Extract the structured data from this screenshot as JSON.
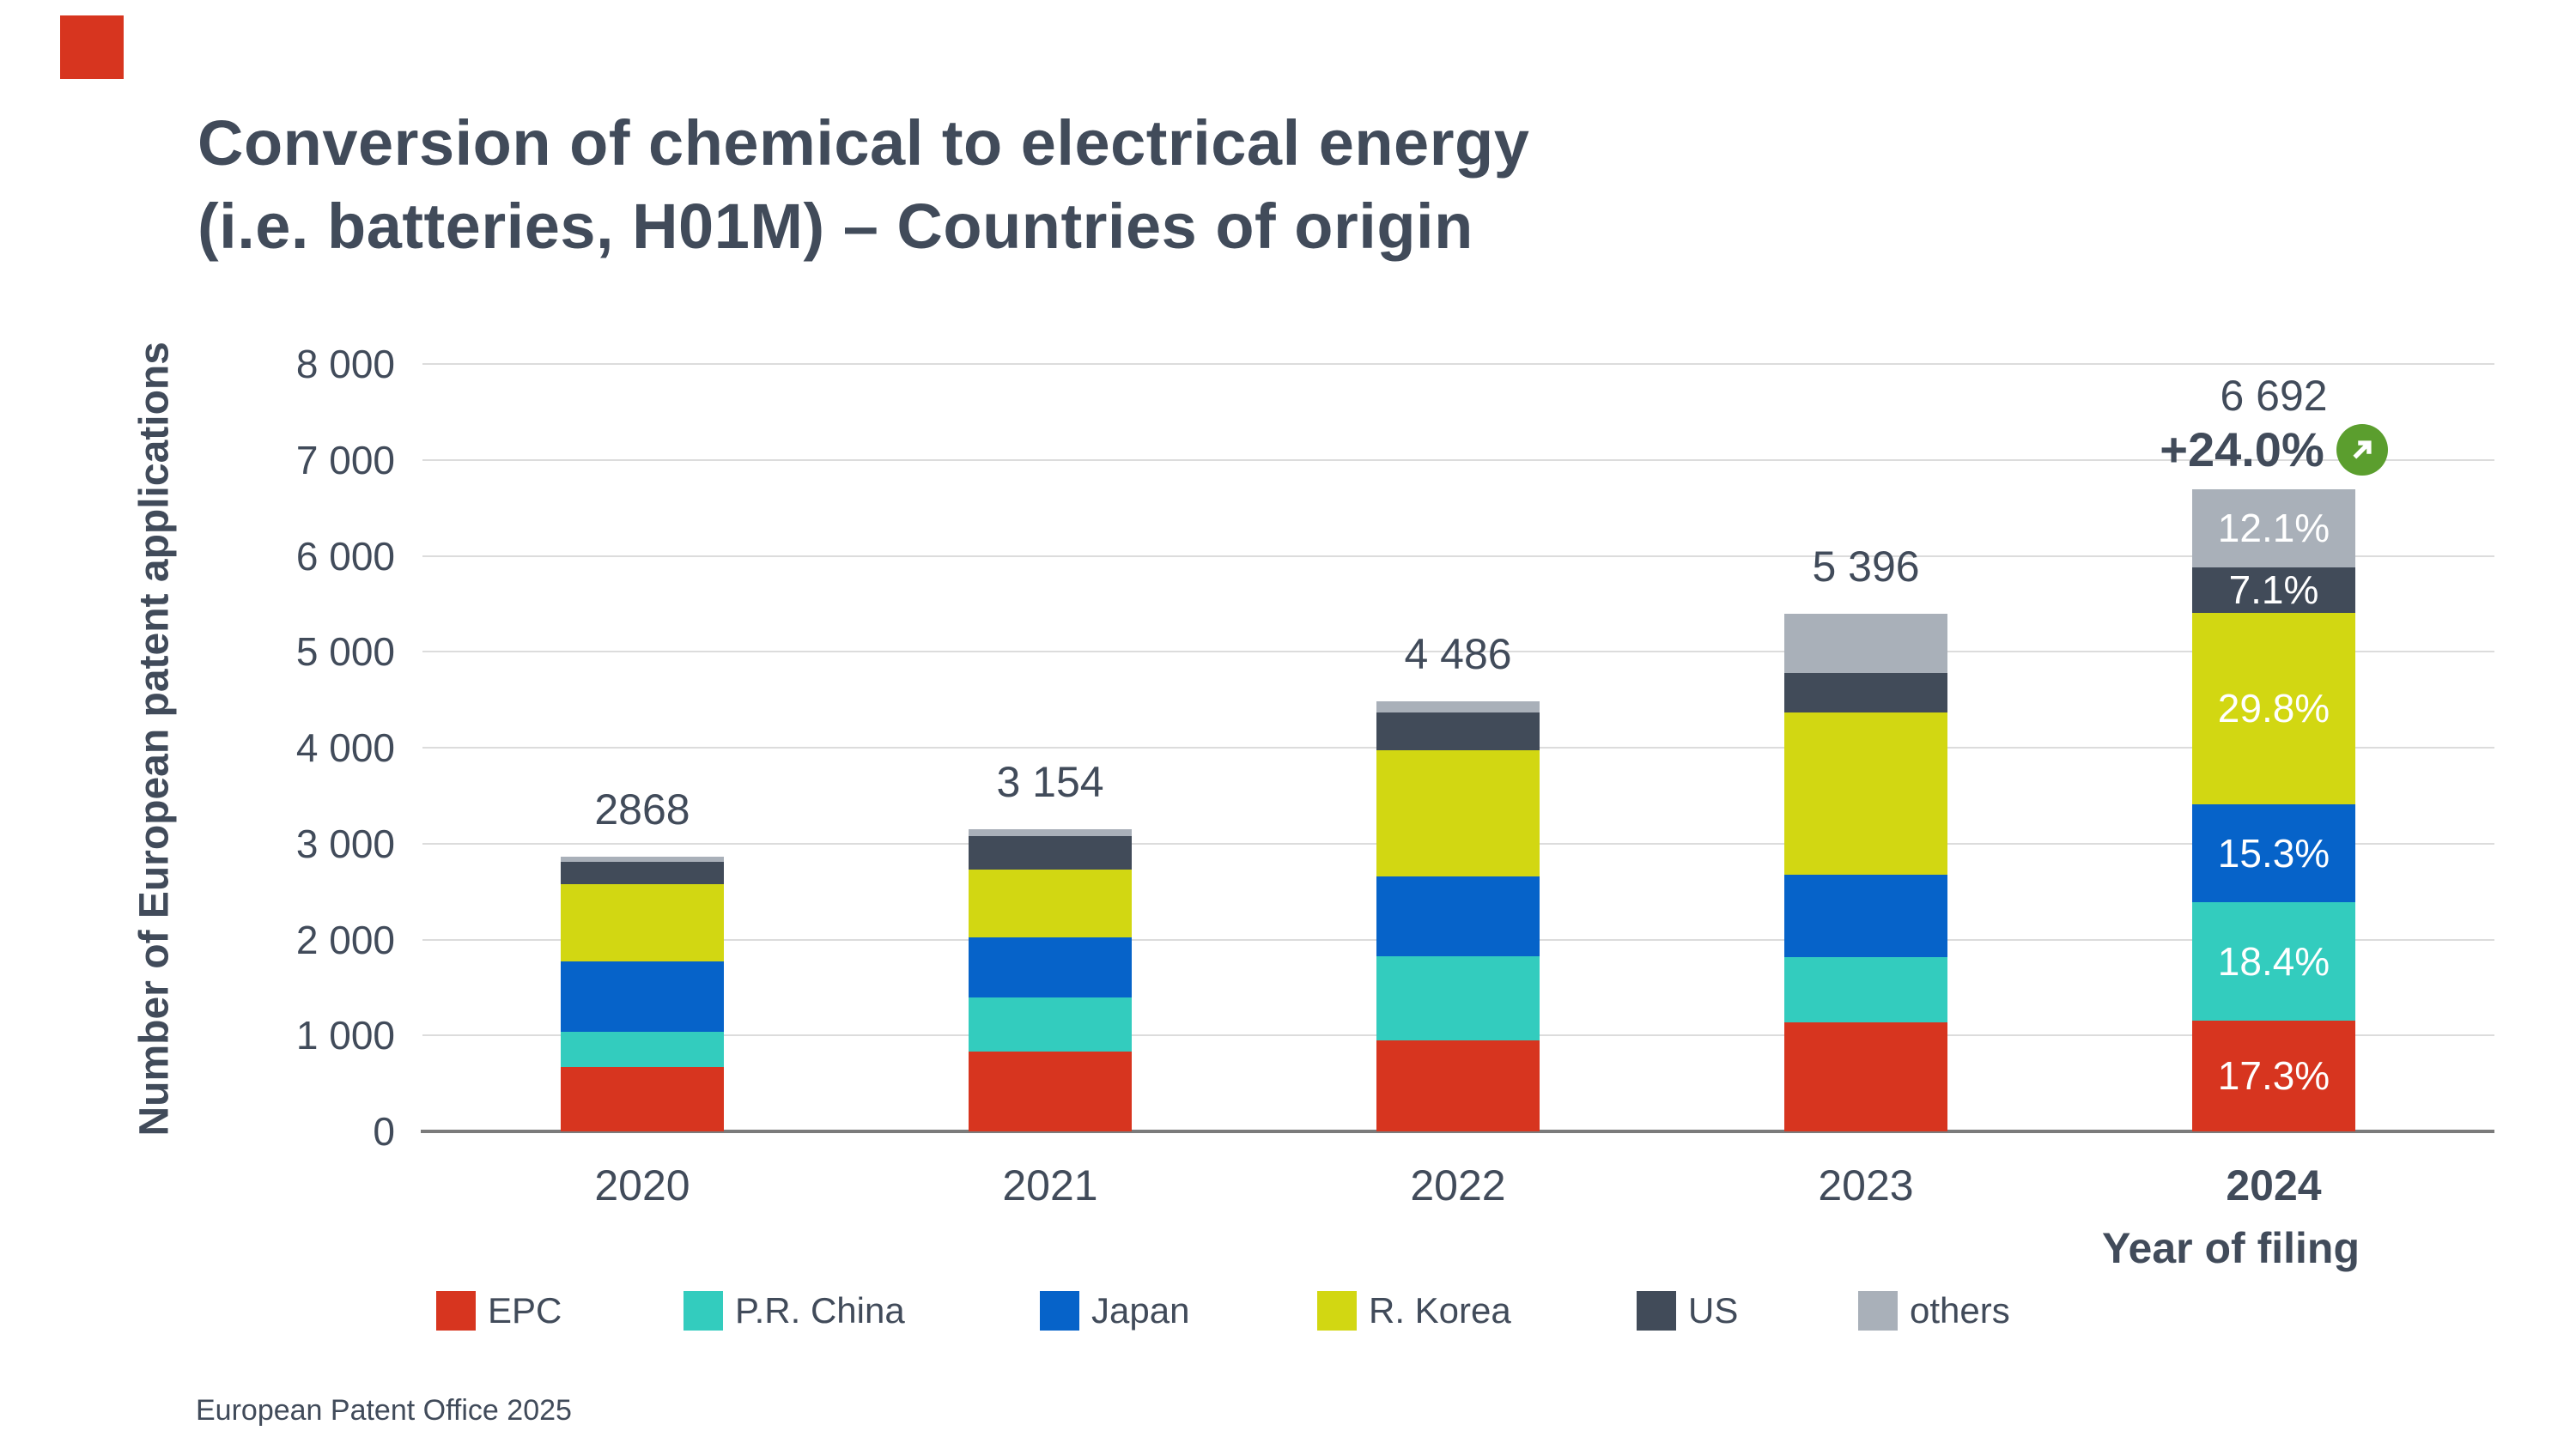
{
  "page": {
    "title_line1": "Conversion of chemical to electrical energy",
    "title_line2": "(i.e. batteries, H01M) – Countries of origin",
    "footer": "European Patent Office 2025"
  },
  "chart_data": {
    "type": "bar",
    "stacked": true,
    "title": "Conversion of chemical to electrical energy (i.e. batteries, H01M) – Countries of origin",
    "ylabel": "Number of European patent applications",
    "xlabel": "Year of filing",
    "ylim": [
      0,
      8000
    ],
    "grid": true,
    "legend_position": "bottom",
    "ytick_labels": [
      "0",
      "1 000",
      "2 000",
      "3 000",
      "4 000",
      "5 000",
      "6 000",
      "7 000",
      "8 000"
    ],
    "categories": [
      "2020",
      "2021",
      "2022",
      "2023",
      "2024"
    ],
    "totals": [
      2868,
      3154,
      4486,
      5396,
      6692
    ],
    "total_labels": [
      "2868",
      "3 154",
      "4 486",
      "5 396",
      "6 692"
    ],
    "last_year_total_label": "6 692",
    "growth_label": "+24.0%",
    "growth_icon": "arrow-up-right-icon",
    "growth_color": "#5b9e2e",
    "series": [
      {
        "name": "EPC",
        "color": "#d7351f",
        "values": [
          675,
          831,
          950,
          1140,
          1158
        ],
        "pct_2024": "17.3%"
      },
      {
        "name": "P.R. China",
        "color": "#33ccbe",
        "values": [
          360,
          565,
          874,
          680,
          1231
        ],
        "pct_2024": "18.4%"
      },
      {
        "name": "Japan",
        "color": "#0663c9",
        "values": [
          740,
          628,
          836,
          856,
          1024
        ],
        "pct_2024": "15.3%"
      },
      {
        "name": "R. Korea",
        "color": "#d2d712",
        "values": [
          800,
          707,
          1312,
          1689,
          1994
        ],
        "pct_2024": "29.8%"
      },
      {
        "name": "US",
        "color": "#414b59",
        "values": [
          233,
          345,
          399,
          417,
          475
        ],
        "pct_2024": "7.1%"
      },
      {
        "name": "others",
        "color": "#a9b0b9",
        "values": [
          60,
          78,
          115,
          614,
          810
        ],
        "pct_2024": "12.1%"
      }
    ]
  }
}
